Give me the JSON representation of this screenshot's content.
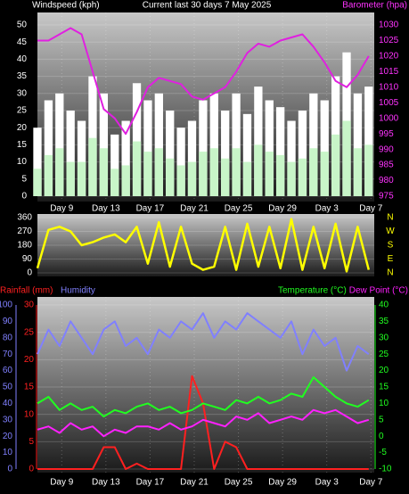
{
  "chart_data": [
    {
      "type": "combo",
      "title": "Current last 30 days 7 May 2025",
      "ylabel": "Windspeed (kph)",
      "y2label": "Barometer (hpa)",
      "x": [
        0,
        1,
        2,
        3,
        4,
        5,
        6,
        7,
        8,
        9,
        10,
        11,
        12,
        13,
        14,
        15,
        16,
        17,
        18,
        19,
        20,
        21,
        22,
        23,
        24,
        25,
        26,
        27,
        28,
        29,
        30
      ],
      "xlim": [
        0,
        30.5
      ],
      "xticks": [
        {
          "value": 2.2,
          "label": "Day 9"
        },
        {
          "value": 6.2,
          "label": "Day 13"
        },
        {
          "value": 10.2,
          "label": "Day 17"
        },
        {
          "value": 14.2,
          "label": "Day 21"
        },
        {
          "value": 18.2,
          "label": "Day 25"
        },
        {
          "value": 22.2,
          "label": "Day 29"
        },
        {
          "value": 26.2,
          "label": "Day 3"
        },
        {
          "value": 30.2,
          "label": "Day 7"
        }
      ],
      "ylim": [
        0,
        50
      ],
      "yticks": [
        0,
        5,
        10,
        15,
        20,
        25,
        30,
        35,
        40,
        45,
        50
      ],
      "y2lim": [
        975,
        1030
      ],
      "y2ticks": [
        975,
        980,
        985,
        990,
        995,
        1000,
        1005,
        1010,
        1015,
        1020,
        1025,
        1030
      ],
      "grid": true,
      "y2color": "#ff33ff",
      "series": [
        {
          "type": "bar",
          "color": "#ffffff",
          "values": [
            20,
            28,
            30,
            25,
            22,
            35,
            30,
            18,
            22,
            33,
            28,
            30,
            25,
            20,
            22,
            28,
            30,
            25,
            30,
            24,
            32,
            28,
            26,
            22,
            25,
            30,
            28,
            35,
            42,
            30,
            32
          ]
        },
        {
          "type": "bar",
          "color": "#c8f5c8",
          "values": [
            8,
            12,
            14,
            10,
            10,
            17,
            14,
            8,
            9,
            16,
            13,
            14,
            11,
            9,
            10,
            13,
            14,
            11,
            14,
            10,
            15,
            13,
            12,
            10,
            11,
            14,
            13,
            18,
            22,
            14,
            15
          ]
        },
        {
          "type": "line",
          "axis": "y2",
          "color": "#e020e0",
          "values": [
            1025,
            1025,
            1027,
            1029,
            1027,
            1015,
            1003,
            1000,
            995,
            1002,
            1010,
            1013,
            1012,
            1011,
            1007,
            1006,
            1008,
            1010,
            1015,
            1021,
            1024,
            1023,
            1025,
            1026,
            1027,
            1023,
            1018,
            1012,
            1010,
            1014,
            1020
          ]
        }
      ]
    },
    {
      "type": "line",
      "x": [
        0,
        1,
        2,
        3,
        4,
        5,
        6,
        7,
        8,
        9,
        10,
        11,
        12,
        13,
        14,
        15,
        16,
        17,
        18,
        19,
        20,
        21,
        22,
        23,
        24,
        25,
        26,
        27,
        28,
        29,
        30
      ],
      "xlim": [
        0,
        30.5
      ],
      "ylim": [
        0,
        360
      ],
      "yticks": [
        0,
        90,
        180,
        270,
        360
      ],
      "y2lim": [
        0,
        360
      ],
      "y2ticks": [
        {
          "value": 360,
          "label": "N"
        },
        {
          "value": 270,
          "label": "W"
        },
        {
          "value": 180,
          "label": "S"
        },
        {
          "value": 90,
          "label": "E"
        },
        {
          "value": 0,
          "label": "N"
        }
      ],
      "grid": true,
      "y2color": "#ffff00",
      "series": [
        {
          "type": "line",
          "color": "#ffff00",
          "values": [
            30,
            280,
            300,
            270,
            180,
            200,
            230,
            250,
            200,
            300,
            60,
            330,
            40,
            300,
            60,
            20,
            40,
            300,
            20,
            320,
            40,
            300,
            30,
            350,
            20,
            300,
            30,
            320,
            10,
            300,
            20
          ]
        }
      ]
    },
    {
      "type": "combo",
      "x": [
        0,
        1,
        2,
        3,
        4,
        5,
        6,
        7,
        8,
        9,
        10,
        11,
        12,
        13,
        14,
        15,
        16,
        17,
        18,
        19,
        20,
        21,
        22,
        23,
        24,
        25,
        26,
        27,
        28,
        29,
        30
      ],
      "xlim": [
        0,
        30.5
      ],
      "xticks": [
        {
          "value": 2.2,
          "label": "Day 9"
        },
        {
          "value": 6.2,
          "label": "Day 13"
        },
        {
          "value": 10.2,
          "label": "Day 17"
        },
        {
          "value": 14.2,
          "label": "Day 21"
        },
        {
          "value": 18.2,
          "label": "Day 25"
        },
        {
          "value": 22.2,
          "label": "Day 29"
        },
        {
          "value": 26.2,
          "label": "Day 3"
        },
        {
          "value": 30.2,
          "label": "Day 7"
        }
      ],
      "ylim": [
        0,
        30
      ],
      "yticks": [
        0,
        5,
        10,
        15,
        20,
        25,
        30
      ],
      "ycolor": "#ff2020",
      "y3lim": [
        0,
        100
      ],
      "y3ticks": [
        0,
        10,
        20,
        30,
        40,
        50,
        60,
        70,
        80,
        90,
        100
      ],
      "y3color": "#8080ff",
      "y2lim": [
        -10,
        40
      ],
      "y2ticks": [
        -10,
        -5,
        0,
        5,
        10,
        15,
        20,
        25,
        30,
        35,
        40
      ],
      "y2color": "#20ff20",
      "grid": true,
      "series": [
        {
          "name": "Rainfall (mm)",
          "type": "line",
          "axis": "y",
          "color": "#ff2020",
          "values": [
            0,
            0,
            0,
            0,
            0,
            0,
            4,
            4,
            0,
            1,
            0,
            0,
            0,
            0,
            17,
            12,
            0,
            5,
            4,
            0,
            0,
            0,
            0,
            0,
            0,
            0,
            0,
            0,
            0,
            0,
            0
          ]
        },
        {
          "name": "Humidity",
          "type": "line",
          "axis": "y3",
          "color": "#8080ff",
          "values": [
            70,
            85,
            75,
            90,
            80,
            70,
            85,
            90,
            75,
            80,
            70,
            85,
            80,
            90,
            85,
            95,
            80,
            90,
            85,
            95,
            90,
            85,
            80,
            90,
            70,
            85,
            75,
            80,
            60,
            75,
            70
          ]
        },
        {
          "name": "Temperature (°C)",
          "type": "line",
          "axis": "y2",
          "color": "#20ff20",
          "values": [
            10,
            12,
            8,
            10,
            8,
            9,
            6,
            8,
            7,
            9,
            10,
            8,
            9,
            7,
            8,
            10,
            9,
            8,
            11,
            10,
            12,
            10,
            11,
            13,
            12,
            18,
            15,
            12,
            10,
            9,
            11
          ]
        },
        {
          "name": "Dew Point (°C)",
          "type": "line",
          "axis": "y2",
          "color": "#ff20ff",
          "values": [
            2,
            3,
            1,
            4,
            2,
            3,
            0,
            2,
            1,
            3,
            3,
            2,
            4,
            2,
            3,
            5,
            4,
            3,
            6,
            5,
            7,
            4,
            5,
            6,
            5,
            8,
            7,
            8,
            6,
            4,
            5
          ]
        }
      ]
    }
  ]
}
